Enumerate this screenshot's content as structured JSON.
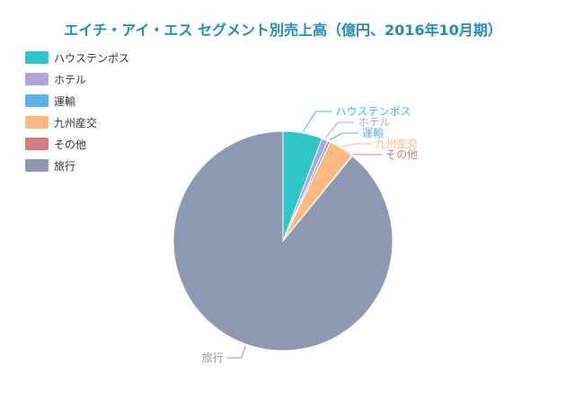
{
  "chart_data": {
    "type": "pie",
    "title": "エイチ・アイ・エス セグメント別売上高（億円、2016年10月期）",
    "legend_position": "top-left",
    "start_angle": "top",
    "direction": "clockwise",
    "series": [
      {
        "name": "ハウステンポス",
        "value": 5.8,
        "color": "#2ec7c9"
      },
      {
        "name": "ホテル",
        "value": 0.9,
        "color": "#b6a2de"
      },
      {
        "name": "運輸",
        "value": 0.4,
        "color": "#5ab1ef"
      },
      {
        "name": "九州産交",
        "value": 3.7,
        "color": "#ffb980"
      },
      {
        "name": "その他",
        "value": 0.1,
        "color": "#d87a80"
      },
      {
        "name": "旅行",
        "value": 89.1,
        "color": "#8d98b3"
      }
    ]
  }
}
